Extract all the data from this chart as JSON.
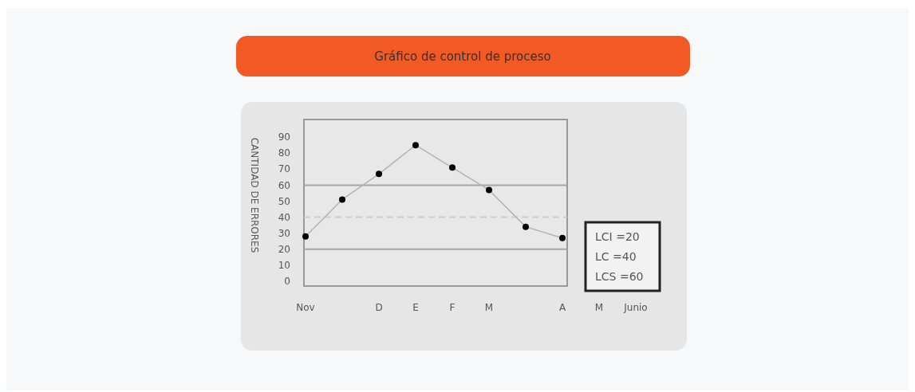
{
  "chart_data": {
    "type": "line",
    "title": "Gráfico de control de proceso",
    "ylabel": "CANTIDAD DE ERRORES",
    "categories": [
      "Nov",
      null,
      "D",
      "E",
      "F",
      "M",
      null,
      "A",
      "M",
      "Junio"
    ],
    "series": [
      {
        "color": "#b3b3b3",
        "values": [
          28,
          51,
          67,
          85,
          71,
          57,
          34,
          27,
          null,
          null
        ]
      }
    ],
    "marker": "circle",
    "line_style": "solid",
    "ylim": [
      -3,
      101
    ],
    "yticks": [
      0,
      10,
      20,
      30,
      40,
      50,
      60,
      70,
      80,
      90
    ],
    "grid": false,
    "annotations": [
      "LCI =20",
      "LC =40",
      "LCS =60"
    ],
    "ref_lines": [
      {
        "axis": "y",
        "value": 20,
        "color": "#a6a6a6",
        "line_style": "solid"
      },
      {
        "axis": "y",
        "value": 40,
        "color": "#cccccc",
        "line_style": "dashed"
      },
      {
        "axis": "y",
        "value": 60,
        "color": "#a6a6a6",
        "line_style": "solid"
      }
    ]
  }
}
